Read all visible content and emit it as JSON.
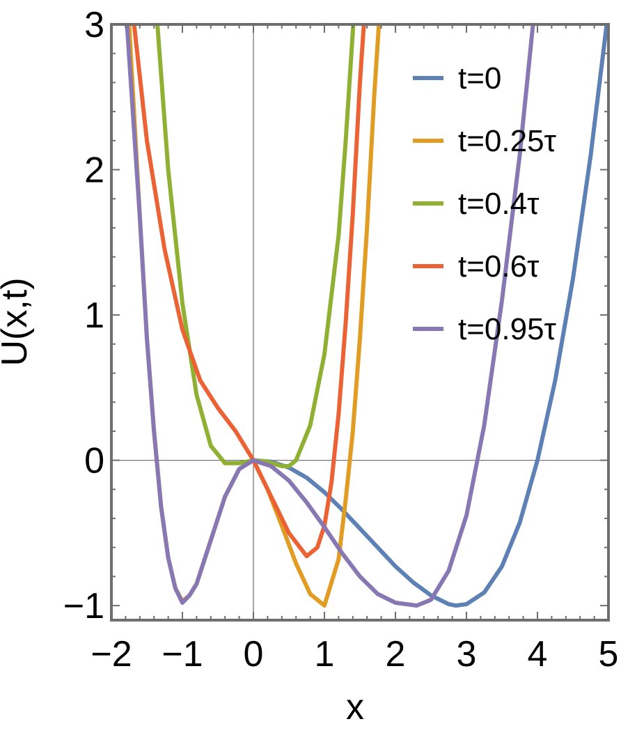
{
  "chart_data": {
    "type": "line",
    "title": "",
    "xlabel": "x",
    "ylabel": "U(x,t)",
    "xlim": [
      -2,
      5
    ],
    "ylim": [
      -1.1,
      3
    ],
    "x_ticks": [
      "−2",
      "−1",
      "0",
      "1",
      "2",
      "3",
      "4",
      "5"
    ],
    "y_ticks": [
      "−1",
      "0",
      "1",
      "2",
      "3"
    ],
    "x_tick_values": [
      -2,
      -1,
      0,
      1,
      2,
      3,
      4,
      5
    ],
    "y_tick_values": [
      -1,
      0,
      1,
      2,
      3
    ],
    "grid": false,
    "legend_position": "top-right",
    "series": [
      {
        "name": "t=0",
        "color": "#5e81b5",
        "x": [
          0,
          0.25,
          0.5,
          0.75,
          1.0,
          1.25,
          1.5,
          1.75,
          2.0,
          2.25,
          2.5,
          2.75,
          2.85,
          3.0,
          3.25,
          3.5,
          3.75,
          4.0,
          4.25,
          4.5,
          4.75,
          5.0
        ],
        "y": [
          0,
          -0.01,
          -0.05,
          -0.12,
          -0.22,
          -0.34,
          -0.47,
          -0.6,
          -0.73,
          -0.84,
          -0.93,
          -0.99,
          -1.0,
          -0.99,
          -0.91,
          -0.73,
          -0.43,
          0,
          0.55,
          1.25,
          2.1,
          3.1
        ]
      },
      {
        "name": "t=0.25τ",
        "color": "#e19c24",
        "x": [
          -1.75,
          -1.6,
          -1.5,
          -1.4,
          -1.3,
          -1.2,
          -1.1,
          -1.0,
          -0.9,
          -0.8,
          -0.6,
          -0.4,
          -0.2,
          0,
          0.2,
          0.4,
          0.6,
          0.8,
          1.0,
          1.2,
          1.3,
          1.4,
          1.5,
          1.6,
          1.7,
          1.78
        ],
        "y": [
          3.0,
          1.68,
          0.84,
          0.2,
          -0.32,
          -0.67,
          -0.88,
          -0.97,
          -0.93,
          -0.85,
          -0.55,
          -0.25,
          -0.06,
          0,
          -0.2,
          -0.45,
          -0.71,
          -0.92,
          -1.0,
          -0.68,
          -0.27,
          0.2,
          0.84,
          1.6,
          2.5,
          3.1
        ]
      },
      {
        "name": "t=0.4τ",
        "color": "#8fb032",
        "x": [
          -1.36,
          -1.2,
          -1.0,
          -0.8,
          -0.6,
          -0.4,
          -0.2,
          0,
          0.2,
          0.4,
          0.5,
          0.6,
          0.8,
          1.0,
          1.2,
          1.3,
          1.42
        ],
        "y": [
          3.05,
          2.0,
          1.08,
          0.45,
          0.1,
          -0.02,
          -0.02,
          0,
          -0.01,
          -0.04,
          -0.04,
          0,
          0.24,
          0.73,
          1.55,
          2.2,
          3.1
        ]
      },
      {
        "name": "t=0.6τ",
        "color": "#eb6235",
        "x": [
          -1.68,
          -1.5,
          -1.25,
          -1.0,
          -0.75,
          -0.5,
          -0.25,
          0,
          0.25,
          0.5,
          0.75,
          0.9,
          1.0,
          1.1,
          1.2,
          1.3,
          1.4,
          1.5,
          1.57
        ],
        "y": [
          3.0,
          2.2,
          1.45,
          0.9,
          0.55,
          0.36,
          0.2,
          0,
          -0.25,
          -0.5,
          -0.66,
          -0.6,
          -0.45,
          -0.15,
          0.32,
          0.95,
          1.7,
          2.6,
          3.1
        ]
      },
      {
        "name": "t=0.95τ",
        "color": "#8778b3",
        "x": [
          -1.78,
          -1.6,
          -1.5,
          -1.4,
          -1.3,
          -1.2,
          -1.1,
          -1.0,
          -0.9,
          -0.8,
          -0.6,
          -0.4,
          -0.2,
          0,
          0.25,
          0.5,
          0.75,
          1.0,
          1.25,
          1.5,
          1.75,
          2.0,
          2.3,
          2.5,
          2.75,
          3.0,
          3.25,
          3.5,
          3.75,
          4.0
        ],
        "y": [
          3.0,
          1.68,
          0.84,
          0.2,
          -0.32,
          -0.67,
          -0.88,
          -0.98,
          -0.93,
          -0.85,
          -0.55,
          -0.25,
          -0.06,
          0,
          -0.04,
          -0.14,
          -0.29,
          -0.46,
          -0.64,
          -0.8,
          -0.92,
          -0.98,
          -1.0,
          -0.96,
          -0.76,
          -0.38,
          0.24,
          1.1,
          2.1,
          3.3
        ]
      }
    ]
  }
}
